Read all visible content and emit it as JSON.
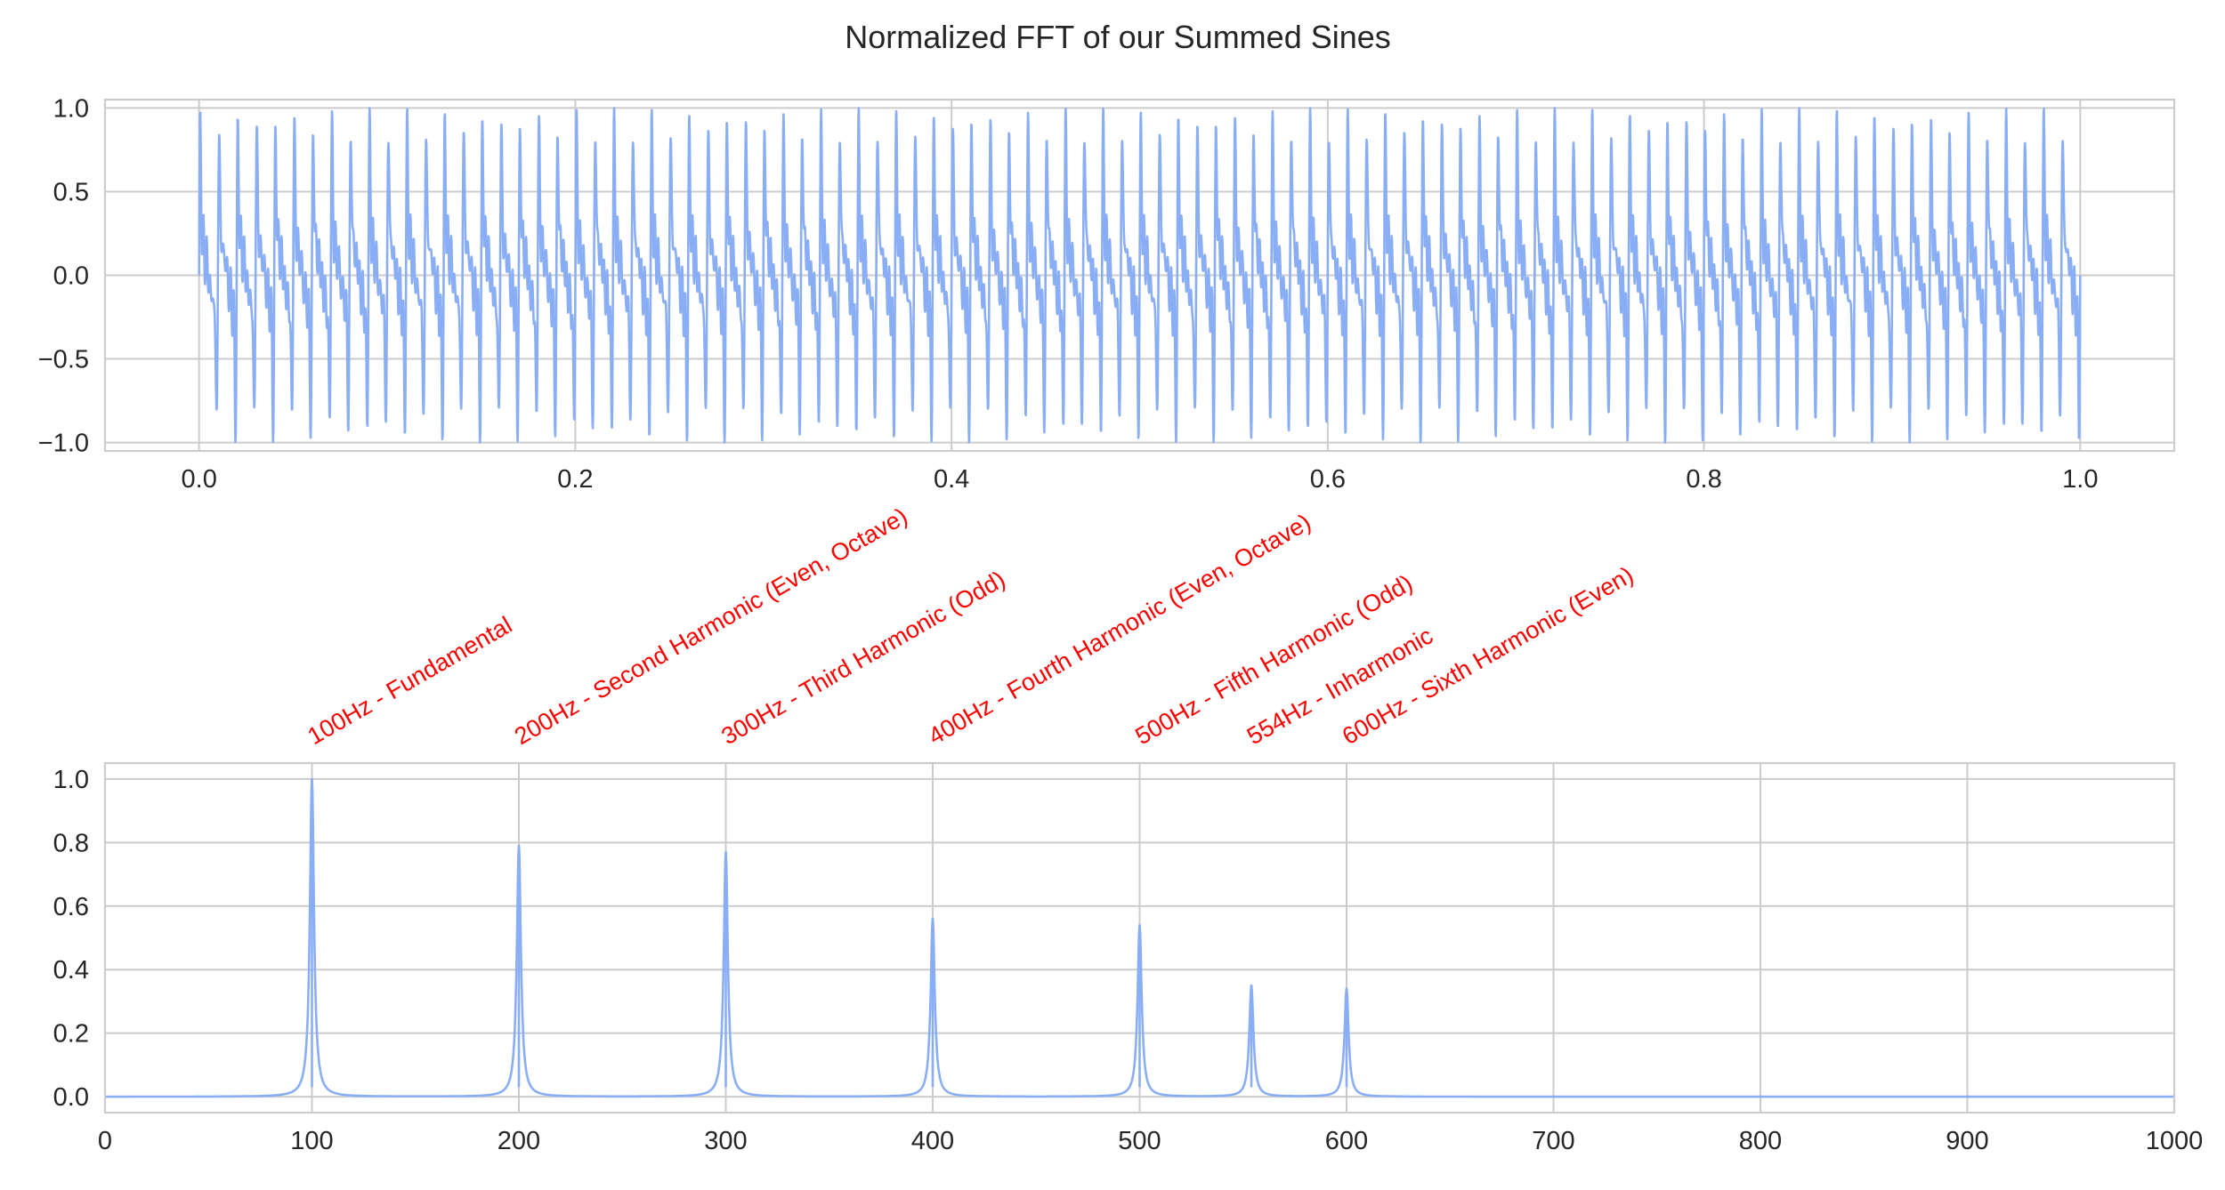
{
  "figure": {
    "title": "Normalized FFT of our Summed Sines",
    "line_color": "#8aaef5",
    "grid_color": "#cccccc",
    "axes_edge_color": "#cccccc",
    "annotation_color": "#ff0000"
  },
  "chart_data": [
    {
      "type": "line",
      "name": "time-domain-signal",
      "title": "",
      "xlabel": "",
      "ylabel": "",
      "xlim": [
        -0.05,
        1.05
      ],
      "ylim": [
        -1.05,
        1.05
      ],
      "grid": true,
      "x_ticks": [
        0.0,
        0.2,
        0.4,
        0.6,
        0.8,
        1.0
      ],
      "x_tick_labels": [
        "0.0",
        "0.2",
        "0.4",
        "0.6",
        "0.8",
        "1.0"
      ],
      "y_ticks": [
        1.0,
        0.5,
        0.0,
        -0.5,
        -1.0
      ],
      "y_tick_labels": [
        "1.0",
        "0.5",
        "0.0",
        "−0.5",
        "−1.0"
      ],
      "signal": {
        "x_range": [
          0.0,
          1.0
        ],
        "components": [
          {
            "freq": 100,
            "amp": 1.0
          },
          {
            "freq": 200,
            "amp": 0.8
          },
          {
            "freq": 300,
            "amp": 0.78
          },
          {
            "freq": 400,
            "amp": 0.57
          },
          {
            "freq": 500,
            "amp": 0.55
          },
          {
            "freq": 554,
            "amp": 0.35
          },
          {
            "freq": 600,
            "amp": 0.34
          }
        ],
        "normalized_peak": 1.0
      }
    },
    {
      "type": "line",
      "name": "fft-spectrum",
      "title": "",
      "xlabel": "",
      "ylabel": "",
      "xlim": [
        0,
        1000
      ],
      "ylim": [
        -0.05,
        1.05
      ],
      "grid": true,
      "x_ticks": [
        0,
        100,
        200,
        300,
        400,
        500,
        600,
        700,
        800,
        900,
        1000
      ],
      "x_tick_labels": [
        "0",
        "100",
        "200",
        "300",
        "400",
        "500",
        "600",
        "700",
        "800",
        "900",
        "1000"
      ],
      "y_ticks": [
        1.0,
        0.8,
        0.6,
        0.4,
        0.2,
        0.0
      ],
      "y_tick_labels": [
        "1.0",
        "0.8",
        "0.6",
        "0.4",
        "0.2",
        "0.0"
      ],
      "peaks": [
        {
          "x": 100,
          "y": 1.0
        },
        {
          "x": 200,
          "y": 0.79
        },
        {
          "x": 300,
          "y": 0.77
        },
        {
          "x": 400,
          "y": 0.56
        },
        {
          "x": 500,
          "y": 0.54
        },
        {
          "x": 554,
          "y": 0.35
        },
        {
          "x": 600,
          "y": 0.34
        }
      ],
      "annotations": [
        {
          "x": 100,
          "text": "100Hz - Fundamental"
        },
        {
          "x": 200,
          "text": "200Hz - Second Harmonic (Even, Octave)"
        },
        {
          "x": 300,
          "text": "300Hz - Third Harmonic (Odd)"
        },
        {
          "x": 400,
          "text": "400Hz - Fourth Harmonic (Even, Octave)"
        },
        {
          "x": 500,
          "text": "500Hz - Fifth Harmonic (Odd)"
        },
        {
          "x": 554,
          "text": "554Hz - Inharmonic"
        },
        {
          "x": 600,
          "text": "600Hz - Sixth Harmonic (Even)"
        }
      ]
    }
  ]
}
